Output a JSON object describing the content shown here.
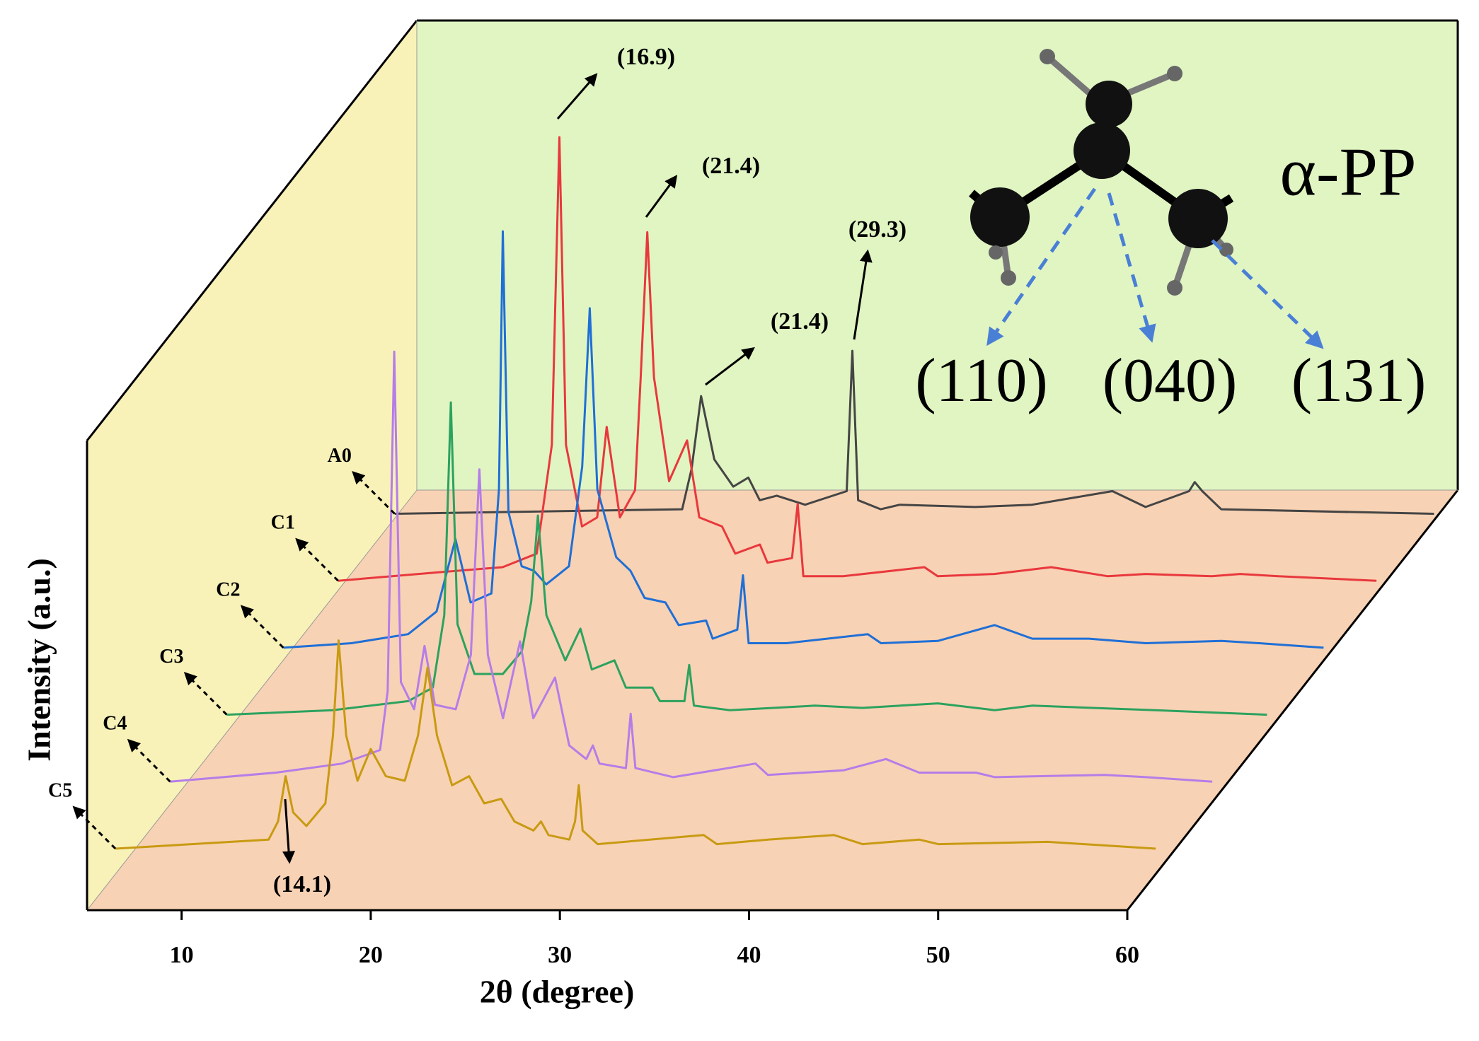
{
  "chart_data": {
    "type": "line",
    "x_label": "2θ (degree)",
    "y_label": "Intensity (a.u.)",
    "xlim": [
      5,
      60
    ],
    "xticks": [
      10,
      20,
      30,
      40,
      50,
      60
    ],
    "ylim": [
      0,
      100
    ],
    "grid": false,
    "annotations": [
      "(16.9)",
      "(21.4)",
      "(29.3)",
      "(21.4)",
      "(14.1)"
    ],
    "inset": {
      "label": "α-PP",
      "planes": [
        "(110)",
        "(040)",
        "(131)"
      ]
    },
    "series": [
      {
        "name": "A0",
        "color": "#454545",
        "x": [
          6.3,
          21.5,
          22.0,
          22.5,
          23.2,
          24.2,
          25,
          25.6,
          26.5,
          28,
          30.2,
          30.5,
          30.8,
          32,
          33,
          37,
          40,
          44.25,
          46,
          48.3,
          48.6,
          49,
          50,
          61.25
        ],
        "values": [
          0,
          1,
          10,
          26,
          12,
          6,
          8,
          3,
          4,
          2,
          5,
          36,
          3,
          1,
          2,
          1.5,
          2,
          5,
          1.5,
          5,
          7,
          5,
          1,
          0
        ]
      },
      {
        "name": "C1",
        "color": "#e8383d",
        "x": [
          6.3,
          12,
          15,
          16.8,
          17.6,
          18.0,
          18.35,
          19.2,
          20.0,
          20.5,
          21.2,
          22.0,
          22.3,
          22.65,
          23.0,
          23.8,
          24.75,
          25.4,
          26.6,
          27.3,
          28.6,
          29.0,
          30.3,
          30.6,
          30.9,
          33,
          37.3,
          38,
          41,
          44,
          47,
          49,
          52.5,
          54,
          56,
          61.2
        ],
        "values": [
          0,
          2,
          3,
          6,
          30,
          98,
          30,
          12,
          14,
          34,
          14,
          20,
          45,
          77,
          45,
          22,
          31,
          14,
          12,
          6,
          8,
          4,
          5,
          17,
          1,
          1,
          3,
          1,
          1.5,
          3,
          1,
          1.5,
          1,
          1.5,
          1,
          0
        ]
      },
      {
        "name": "C2",
        "color": "#1f6fd6",
        "x": [
          6.4,
          10,
          13,
          14.5,
          15.5,
          16.3,
          17.4,
          17.8,
          18.0,
          18.3,
          19.0,
          19.65,
          20.3,
          21.5,
          22.2,
          22.6,
          23.0,
          24.0,
          24.75,
          25.5,
          26.6,
          27.3,
          28.75,
          29.1,
          30.4,
          30.7,
          31.0,
          33,
          37.3,
          38,
          41,
          44,
          46,
          49,
          52,
          56,
          58,
          61.4
        ],
        "values": [
          0,
          1,
          3,
          8,
          24,
          10,
          12,
          35,
          92,
          30,
          18,
          17,
          14,
          18,
          40,
          75,
          35,
          20,
          17,
          11,
          10,
          5,
          6,
          2,
          4,
          16,
          1,
          1,
          3,
          1,
          1.5,
          5,
          2,
          2,
          1,
          1.5,
          1,
          0
        ]
      },
      {
        "name": "C3",
        "color": "#2ca25f",
        "x": [
          6.4,
          12,
          16,
          17.3,
          17.9,
          18.25,
          18.6,
          19.5,
          21,
          22.0,
          22.5,
          22.85,
          23.3,
          24.3,
          25.1,
          25.7,
          26.9,
          27.5,
          28.9,
          29.3,
          30.6,
          30.85,
          31.1,
          33,
          37.5,
          40,
          44,
          47,
          49,
          55.5,
          61.4
        ],
        "values": [
          0,
          1,
          3,
          6,
          22,
          69,
          20,
          9,
          9,
          14,
          25,
          44,
          22,
          12,
          19,
          10,
          12,
          6,
          6,
          3,
          3,
          11,
          2,
          1,
          2,
          1.5,
          2.5,
          1,
          2,
          1,
          0
        ]
      },
      {
        "name": "C4",
        "color": "#b57de8",
        "x": [
          6.4,
          12,
          15.5,
          17.5,
          17.9,
          18.25,
          18.6,
          19.3,
          19.85,
          20.4,
          21.5,
          22.3,
          22.75,
          23.2,
          24.0,
          24.9,
          25.6,
          26.75,
          27.5,
          28.4,
          28.75,
          29.1,
          30.5,
          30.75,
          31.0,
          33,
          37.35,
          38,
          42,
          44.25,
          46,
          49,
          50,
          55.8,
          58,
          61.5
        ],
        "values": [
          0,
          2,
          4,
          7,
          20,
          95,
          22,
          16,
          30,
          17,
          16,
          28,
          69,
          28,
          14,
          31,
          14,
          23,
          8,
          5,
          8,
          4,
          3,
          15,
          3,
          1,
          4,
          1.5,
          2.5,
          5,
          2,
          2,
          1,
          1.5,
          1,
          0
        ]
      },
      {
        "name": "C5",
        "color": "#c89a12",
        "x": [
          6.5,
          14.6,
          15.1,
          15.5,
          15.9,
          16.6,
          17.6,
          18.0,
          18.3,
          18.7,
          19.3,
          20.0,
          20.8,
          21.8,
          22.5,
          23.0,
          23.5,
          24.3,
          25.2,
          26.0,
          26.9,
          27.6,
          28.6,
          29.0,
          29.4,
          30.5,
          30.8,
          31.0,
          31.2,
          32,
          37.6,
          38.3,
          41,
          44.5,
          46,
          49,
          50,
          55.8,
          61.5
        ],
        "values": [
          0,
          2,
          6,
          16,
          8,
          5,
          10,
          25,
          46,
          25,
          15,
          22,
          16,
          15,
          25,
          40,
          25,
          14,
          16,
          10,
          11,
          6,
          4,
          6,
          3,
          2,
          6,
          14,
          4,
          1,
          3,
          1,
          2,
          3,
          1,
          2,
          1,
          1.5,
          0
        ]
      }
    ]
  }
}
